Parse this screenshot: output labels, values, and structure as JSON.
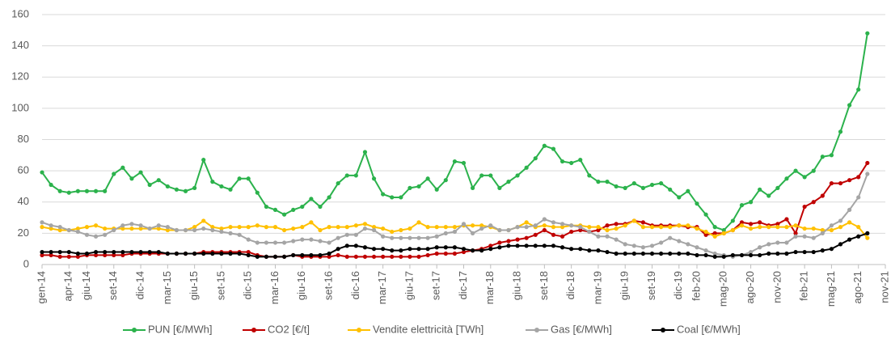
{
  "chart_data": {
    "type": "line",
    "categories": [
      "gen-14",
      null,
      null,
      "apr-14",
      null,
      "giu-14",
      null,
      null,
      "set-14",
      null,
      null,
      "dic-14",
      null,
      null,
      "mar-15",
      null,
      null,
      "giu-15",
      null,
      null,
      "set-15",
      null,
      null,
      "dic-15",
      null,
      null,
      "mar-16",
      null,
      null,
      "giu-16",
      null,
      null,
      "set-16",
      null,
      null,
      "dic-16",
      null,
      null,
      "mar-17",
      null,
      null,
      "giu-17",
      null,
      null,
      "set-17",
      null,
      null,
      "dic-17",
      null,
      null,
      "mar-18",
      null,
      null,
      "giu-18",
      null,
      null,
      "set-18",
      null,
      null,
      "dic-18",
      null,
      null,
      "mar-19",
      null,
      null,
      "giu-19",
      null,
      null,
      "set-19",
      null,
      null,
      "dic-19",
      null,
      "feb-20",
      null,
      null,
      "mag-20",
      null,
      null,
      "ago-20",
      null,
      null,
      "nov-20",
      null,
      null,
      "feb-21",
      null,
      null,
      "mag-21",
      null,
      null,
      "ago-21",
      null,
      null,
      "nov-21"
    ],
    "series": [
      {
        "name": "PUN [€/MWh]",
        "color": "#2bb24c",
        "values": [
          59,
          51,
          47,
          46,
          47,
          47,
          47,
          47,
          58,
          62,
          55,
          59,
          51,
          54,
          50,
          48,
          47,
          49,
          67,
          53,
          50,
          48,
          55,
          55,
          46,
          37,
          35,
          32,
          35,
          37,
          42,
          37,
          43,
          52,
          57,
          57,
          72,
          55,
          45,
          43,
          43,
          49,
          50,
          55,
          48,
          54,
          66,
          65,
          49,
          57,
          57,
          49,
          53,
          57,
          62,
          68,
          76,
          74,
          66,
          65,
          67,
          57,
          53,
          53,
          50,
          49,
          52,
          49,
          51,
          52,
          48,
          43,
          47,
          39,
          32,
          24,
          22,
          28,
          38,
          40,
          48,
          44,
          49,
          55,
          60,
          56,
          60,
          69,
          70,
          85,
          102,
          112,
          148,
          null,
          null
        ]
      },
      {
        "name": "CO2 [€/t]",
        "color": "#c00000",
        "values": [
          6,
          6,
          5,
          5,
          5,
          6,
          6,
          6,
          6,
          6,
          7,
          7,
          7,
          7,
          7,
          7,
          7,
          7,
          8,
          8,
          8,
          8,
          8,
          8,
          6,
          5,
          5,
          5,
          6,
          5,
          5,
          5,
          5,
          6,
          5,
          5,
          5,
          5,
          5,
          5,
          5,
          5,
          5,
          6,
          7,
          7,
          7,
          8,
          9,
          10,
          12,
          14,
          15,
          16,
          17,
          19,
          22,
          19,
          18,
          21,
          22,
          21,
          22,
          25,
          26,
          26,
          28,
          27,
          25,
          25,
          25,
          25,
          24,
          24,
          19,
          20,
          20,
          22,
          27,
          26,
          27,
          25,
          26,
          29,
          20,
          37,
          40,
          44,
          52,
          52,
          54,
          56,
          65,
          null,
          null
        ]
      },
      {
        "name": "Vendite elettricità [TWh]",
        "color": "#ffc000",
        "values": [
          24,
          23,
          22,
          22,
          23,
          24,
          25,
          23,
          23,
          23,
          23,
          23,
          23,
          23,
          22,
          22,
          22,
          24,
          28,
          24,
          23,
          24,
          24,
          24,
          25,
          24,
          24,
          22,
          23,
          24,
          27,
          22,
          24,
          24,
          24,
          25,
          26,
          24,
          23,
          21,
          22,
          23,
          27,
          24,
          24,
          24,
          24,
          25,
          25,
          25,
          24,
          22,
          22,
          24,
          27,
          24,
          25,
          24,
          24,
          25,
          25,
          24,
          24,
          22,
          23,
          25,
          28,
          24,
          24,
          24,
          24,
          25,
          25,
          23,
          21,
          18,
          20,
          22,
          25,
          23,
          24,
          24,
          24,
          24,
          25,
          23,
          23,
          22,
          22,
          24,
          27,
          24,
          17,
          null,
          null
        ]
      },
      {
        "name": "Gas [€/MWh]",
        "color": "#a5a5a5",
        "values": [
          27,
          25,
          24,
          22,
          21,
          19,
          18,
          19,
          22,
          25,
          26,
          25,
          23,
          25,
          24,
          22,
          22,
          22,
          23,
          22,
          21,
          20,
          19,
          16,
          14,
          14,
          14,
          14,
          15,
          16,
          16,
          15,
          14,
          17,
          19,
          19,
          23,
          22,
          18,
          17,
          17,
          17,
          17,
          17,
          18,
          20,
          21,
          26,
          20,
          23,
          25,
          22,
          22,
          24,
          24,
          25,
          29,
          27,
          26,
          25,
          24,
          21,
          18,
          18,
          16,
          13,
          12,
          11,
          12,
          14,
          17,
          15,
          13,
          11,
          9,
          7,
          6,
          5,
          6,
          8,
          11,
          13,
          14,
          14,
          18,
          18,
          17,
          20,
          25,
          28,
          35,
          43,
          58,
          null,
          null
        ]
      },
      {
        "name": "Coal [€/MWh]",
        "color": "#000000",
        "values": [
          8,
          8,
          8,
          8,
          7,
          7,
          8,
          8,
          8,
          8,
          8,
          8,
          8,
          8,
          7,
          7,
          7,
          7,
          7,
          7,
          7,
          7,
          7,
          6,
          5,
          5,
          5,
          5,
          6,
          6,
          6,
          6,
          7,
          10,
          12,
          12,
          11,
          10,
          10,
          9,
          9,
          10,
          10,
          10,
          11,
          11,
          11,
          10,
          9,
          9,
          10,
          11,
          12,
          12,
          12,
          12,
          12,
          12,
          11,
          10,
          10,
          9,
          9,
          8,
          7,
          7,
          7,
          7,
          7,
          7,
          7,
          7,
          7,
          6,
          6,
          5,
          5,
          6,
          6,
          6,
          6,
          7,
          7,
          7,
          8,
          8,
          8,
          9,
          10,
          13,
          16,
          18,
          20,
          null,
          null
        ]
      }
    ],
    "ylim": [
      0,
      160
    ],
    "yticks": [
      0,
      20,
      40,
      60,
      80,
      100,
      120,
      140,
      160
    ],
    "grid": true,
    "legend": "bottom"
  }
}
